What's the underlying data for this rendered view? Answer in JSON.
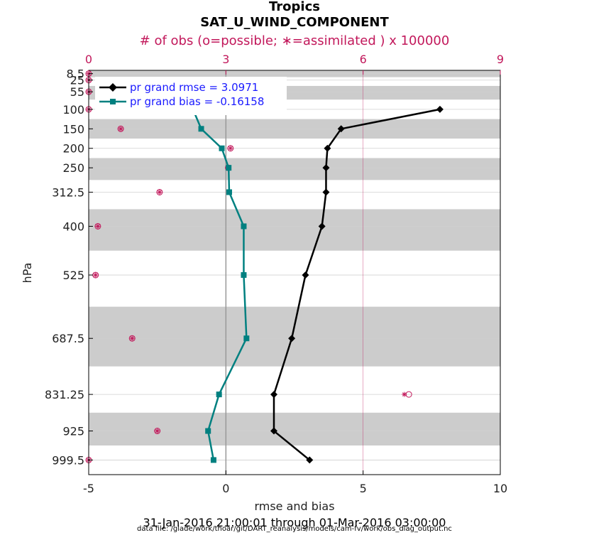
{
  "chart_data": {
    "type": "line",
    "title": "Tropics",
    "subtitle": "SAT_U_WIND_COMPONENT",
    "xlabel": "rmse and bias",
    "ylabel": "hPa",
    "xlim": [
      -5,
      10
    ],
    "x_ticks": [
      "-5",
      "0",
      "5",
      "10"
    ],
    "top_axis": {
      "label": "# of obs (o=possible; ∗=assimilated ) x 100000",
      "lim": [
        0,
        9
      ],
      "ticks": [
        "0",
        "3",
        "6",
        "9"
      ],
      "color": "#c2185b"
    },
    "levels": [
      8.5,
      25,
      55,
      100,
      150,
      200,
      250,
      312.5,
      400,
      525,
      687.5,
      831.25,
      925,
      999.5
    ],
    "level_labels": [
      "8.5",
      "25",
      "55",
      "100",
      "150",
      "200",
      "250",
      "312.5",
      "400",
      "525",
      "687.5",
      "831.25",
      "925",
      "999.5"
    ],
    "band_edges": [
      0,
      17.5,
      40,
      75,
      125,
      175,
      225,
      281.25,
      356.25,
      462.5,
      606.25,
      759.375,
      878.125,
      962.25,
      1037
    ],
    "ylim": [
      0,
      1037
    ],
    "series": [
      {
        "name": "rmse",
        "legend": "pr grand rmse = 3.0971",
        "color": "#000000",
        "marker": "diamond",
        "levels": [
          100,
          150,
          200,
          250,
          312.5,
          400,
          525,
          687.5,
          831.25,
          925,
          999.5
        ],
        "values": [
          7.8,
          4.2,
          3.7,
          3.65,
          3.65,
          3.5,
          2.9,
          2.4,
          1.75,
          1.75,
          3.05
        ]
      },
      {
        "name": "bias",
        "legend": "pr grand bias = -0.16158",
        "color": "#008080",
        "marker": "square",
        "levels": [
          100,
          150,
          200,
          250,
          312.5,
          400,
          525,
          687.5,
          831.25,
          925,
          999.5
        ],
        "values": [
          -1.2,
          -0.9,
          -0.15,
          0.1,
          0.12,
          0.65,
          0.65,
          0.75,
          -0.25,
          -0.65,
          -0.45
        ]
      }
    ],
    "obs_counts": {
      "levels": [
        8.5,
        25,
        55,
        100,
        150,
        200,
        250,
        312.5,
        400,
        525,
        687.5,
        831.25,
        925,
        999.5
      ],
      "possible": [
        0,
        0,
        0,
        0,
        0.7,
        3.1,
        3.05,
        1.55,
        0.2,
        0.15,
        0.95,
        7.0,
        1.5,
        0
      ],
      "assimilated": [
        0,
        0,
        0,
        0,
        0.7,
        3.1,
        3.05,
        1.55,
        0.2,
        0.15,
        0.95,
        6.9,
        1.5,
        0
      ]
    },
    "zero_line": true
  },
  "footer": {
    "dates": "31-Jan-2016 21:00:01 through 01-Mar-2016 03:00:00",
    "file": "data file: /glade/work/thoar/git/DART_reanalysis/models/cam-fv/work/obs_diag_output.nc"
  }
}
